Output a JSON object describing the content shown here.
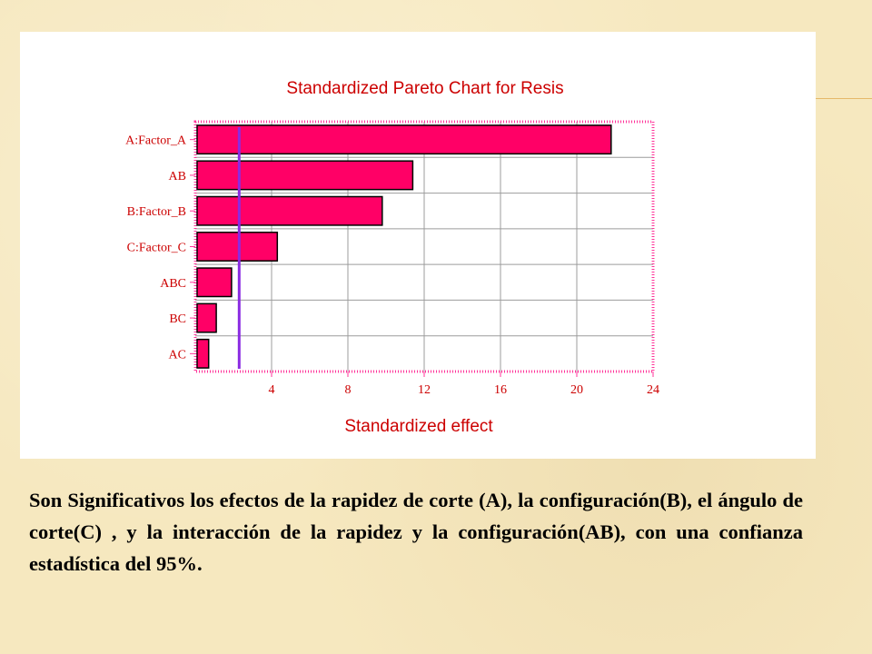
{
  "chart_data": {
    "type": "bar",
    "orientation": "horizontal",
    "title": "Standardized Pareto Chart for Resis",
    "xlabel": "Standardized effect",
    "ylabel": "",
    "categories": [
      "A:Factor_A",
      "AB",
      "B:Factor_B",
      "C:Factor_C",
      "ABC",
      "BC",
      "AC"
    ],
    "values": [
      21.8,
      11.4,
      9.8,
      4.3,
      1.9,
      1.1,
      0.7
    ],
    "xlim": [
      0,
      24
    ],
    "xticks": [
      4,
      8,
      12,
      16,
      20,
      24
    ],
    "reference_line": 2.3,
    "grid": true,
    "colors": {
      "bar_fill": "#ff0066",
      "bar_stroke": "#000000",
      "frame": "#ff3399",
      "grid": "#9c9c9c",
      "reference_line": "#8a2be2",
      "text": "#cc0000"
    }
  },
  "caption": "Son Significativos los efectos de la rapidez de corte (A), la configuración(B), el ángulo de corte(C) , y la interacción de la rapidez y la configuración(AB), con una confianza estadística del 95%."
}
